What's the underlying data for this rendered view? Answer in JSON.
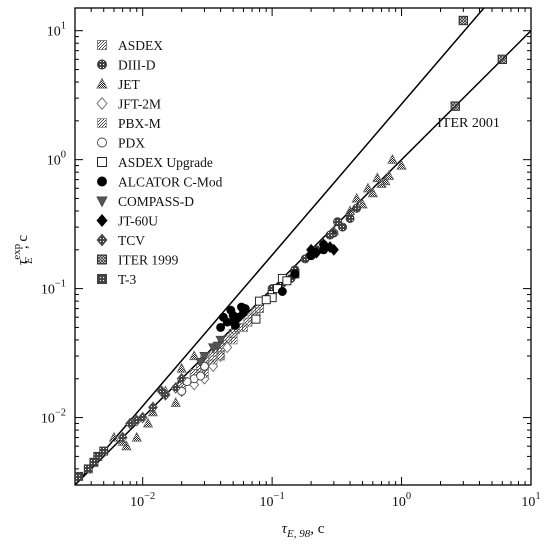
{
  "chart_data": {
    "type": "scatter",
    "x_scale": "log",
    "y_scale": "log",
    "xlim": [
      0.003,
      10
    ],
    "ylim": [
      0.003,
      15
    ],
    "x_ticks": [
      {
        "value": 0.01,
        "base": "10",
        "exp": "−2"
      },
      {
        "value": 0.1,
        "base": "10",
        "exp": "−1"
      },
      {
        "value": 1,
        "base": "10",
        "exp": "0"
      },
      {
        "value": 10,
        "base": "10",
        "exp": "1"
      }
    ],
    "y_ticks": [
      {
        "value": 0.01,
        "base": "10",
        "exp": "−2"
      },
      {
        "value": 0.1,
        "base": "10",
        "exp": "−1"
      },
      {
        "value": 1,
        "base": "10",
        "exp": "0"
      },
      {
        "value": 10,
        "base": "10",
        "exp": "1"
      }
    ],
    "xlabel": {
      "symbol": "τ",
      "sub": "E, 98",
      "unit": ", c"
    },
    "ylabel": {
      "symbol": "τ",
      "sub": "E",
      "sup": "exp",
      "unit": ", c"
    },
    "legend_position": "top-left",
    "legend": [
      {
        "name": "ASDEX",
        "marker": "square-hatched",
        "color": "#999999"
      },
      {
        "name": "DIII-D",
        "marker": "circle-hatched",
        "color": "#555555"
      },
      {
        "name": "JET",
        "marker": "triangle-up",
        "color": "#777777"
      },
      {
        "name": "JFT-2M",
        "marker": "diamond-open",
        "color": "#888888"
      },
      {
        "name": "PBX-M",
        "marker": "square-dotted",
        "color": "#888888"
      },
      {
        "name": "PDX",
        "marker": "circle-open",
        "color": "#555555"
      },
      {
        "name": "ASDEX Upgrade",
        "marker": "square-open",
        "color": "#111111"
      },
      {
        "name": "ALCATOR C-Mod",
        "marker": "circle-filled",
        "color": "#000000"
      },
      {
        "name": "COMPASS-D",
        "marker": "triangle-down",
        "color": "#555555"
      },
      {
        "name": "JT-60U",
        "marker": "diamond-filled",
        "color": "#000000"
      },
      {
        "name": "TCV",
        "marker": "diamond-hatched",
        "color": "#666666"
      },
      {
        "name": "ITER 1999",
        "marker": "square-cross",
        "color": "#555555"
      },
      {
        "name": "T-3",
        "marker": "star-hatched",
        "color": "#333333"
      }
    ],
    "series": [
      {
        "name": "ASDEX",
        "points": [
          [
            0.02,
            0.018
          ],
          [
            0.025,
            0.022
          ],
          [
            0.03,
            0.028
          ],
          [
            0.035,
            0.03
          ],
          [
            0.04,
            0.035
          ],
          [
            0.05,
            0.045
          ],
          [
            0.06,
            0.05
          ],
          [
            0.07,
            0.06
          ],
          [
            0.08,
            0.07
          ],
          [
            0.03,
            0.025
          ],
          [
            0.045,
            0.04
          ],
          [
            0.055,
            0.05
          ],
          [
            0.065,
            0.055
          ],
          [
            0.028,
            0.024
          ],
          [
            0.038,
            0.032
          ],
          [
            0.075,
            0.066
          ],
          [
            0.042,
            0.037
          ],
          [
            0.052,
            0.048
          ]
        ]
      },
      {
        "name": "DIII-D",
        "points": [
          [
            0.1,
            0.1
          ],
          [
            0.12,
            0.11
          ],
          [
            0.15,
            0.14
          ],
          [
            0.18,
            0.17
          ],
          [
            0.2,
            0.18
          ],
          [
            0.25,
            0.22
          ],
          [
            0.3,
            0.27
          ],
          [
            0.35,
            0.3
          ],
          [
            0.4,
            0.35
          ],
          [
            0.14,
            0.12
          ],
          [
            0.22,
            0.2
          ],
          [
            0.28,
            0.26
          ],
          [
            0.32,
            0.33
          ],
          [
            0.45,
            0.42
          ]
        ]
      },
      {
        "name": "JET",
        "points": [
          [
            0.3,
            0.28
          ],
          [
            0.4,
            0.4
          ],
          [
            0.5,
            0.45
          ],
          [
            0.6,
            0.55
          ],
          [
            0.7,
            0.65
          ],
          [
            0.8,
            0.75
          ],
          [
            1.0,
            0.9
          ],
          [
            0.55,
            0.6
          ],
          [
            0.45,
            0.5
          ],
          [
            0.65,
            0.72
          ],
          [
            0.85,
            1.0
          ],
          [
            0.75,
            0.68
          ],
          [
            0.006,
            0.007
          ],
          [
            0.007,
            0.0065
          ],
          [
            0.0075,
            0.006
          ],
          [
            0.009,
            0.007
          ],
          [
            0.012,
            0.011
          ],
          [
            0.02,
            0.024
          ],
          [
            0.025,
            0.03
          ],
          [
            0.015,
            0.016
          ],
          [
            0.018,
            0.013
          ],
          [
            0.011,
            0.009
          ]
        ]
      },
      {
        "name": "JFT-2M",
        "points": [
          [
            0.025,
            0.018
          ],
          [
            0.03,
            0.02
          ],
          [
            0.035,
            0.025
          ],
          [
            0.02,
            0.016
          ],
          [
            0.04,
            0.03
          ],
          [
            0.045,
            0.035
          ]
        ]
      },
      {
        "name": "PBX-M",
        "points": [
          [
            0.03,
            0.022
          ],
          [
            0.04,
            0.03
          ],
          [
            0.05,
            0.04
          ],
          [
            0.06,
            0.05
          ],
          [
            0.07,
            0.06
          ],
          [
            0.035,
            0.028
          ]
        ]
      },
      {
        "name": "PDX",
        "points": [
          [
            0.025,
            0.02
          ],
          [
            0.02,
            0.016
          ],
          [
            0.03,
            0.025
          ],
          [
            0.022,
            0.019
          ],
          [
            0.028,
            0.021
          ]
        ]
      },
      {
        "name": "ASDEX Upgrade",
        "points": [
          [
            0.08,
            0.08
          ],
          [
            0.1,
            0.09
          ],
          [
            0.12,
            0.12
          ],
          [
            0.15,
            0.13
          ],
          [
            0.1,
            0.085
          ],
          [
            0.13,
            0.115
          ],
          [
            0.075,
            0.058
          ],
          [
            0.11,
            0.1
          ],
          [
            0.09,
            0.082
          ]
        ]
      },
      {
        "name": "ALCATOR C-Mod",
        "points": [
          [
            0.04,
            0.05
          ],
          [
            0.05,
            0.055
          ],
          [
            0.055,
            0.06
          ],
          [
            0.06,
            0.065
          ],
          [
            0.045,
            0.055
          ],
          [
            0.05,
            0.062
          ],
          [
            0.15,
            0.13
          ],
          [
            0.2,
            0.18
          ],
          [
            0.25,
            0.2
          ],
          [
            0.12,
            0.095
          ],
          [
            0.058,
            0.072
          ],
          [
            0.042,
            0.06
          ],
          [
            0.062,
            0.07
          ],
          [
            0.052,
            0.052
          ],
          [
            0.048,
            0.068
          ]
        ]
      },
      {
        "name": "COMPASS-D",
        "points": [
          [
            0.03,
            0.03
          ],
          [
            0.035,
            0.035
          ],
          [
            0.04,
            0.04
          ],
          [
            0.028,
            0.027
          ],
          [
            0.038,
            0.036
          ]
        ]
      },
      {
        "name": "JT-60U",
        "points": [
          [
            0.2,
            0.2
          ],
          [
            0.25,
            0.22
          ],
          [
            0.3,
            0.2
          ],
          [
            0.22,
            0.19
          ],
          [
            0.28,
            0.21
          ]
        ]
      },
      {
        "name": "TCV",
        "points": [
          [
            0.008,
            0.009
          ],
          [
            0.01,
            0.01
          ],
          [
            0.012,
            0.012
          ],
          [
            0.015,
            0.015
          ],
          [
            0.02,
            0.02
          ],
          [
            0.007,
            0.007
          ],
          [
            0.018,
            0.017
          ],
          [
            0.009,
            0.0095
          ],
          [
            0.014,
            0.016
          ]
        ]
      },
      {
        "name": "ITER 1999",
        "points": [
          [
            2.6,
            2.6
          ],
          [
            3,
            12
          ],
          [
            6,
            6
          ]
        ]
      },
      {
        "name": "T-3",
        "points": [
          [
            0.0032,
            0.0035
          ],
          [
            0.0038,
            0.004
          ],
          [
            0.0045,
            0.005
          ],
          [
            0.005,
            0.0055
          ],
          [
            0.0042,
            0.0045
          ]
        ]
      }
    ],
    "reference_lines": [
      {
        "name": "identity",
        "from": [
          0.003,
          0.003
        ],
        "to": [
          10,
          10
        ]
      },
      {
        "name": "ITER 2001",
        "from": [
          0.003,
          0.003
        ],
        "to": [
          10,
          40
        ]
      }
    ],
    "annotations": [
      {
        "text": "ITER 2001",
        "x": 2.6,
        "y": 2.6
      }
    ]
  }
}
